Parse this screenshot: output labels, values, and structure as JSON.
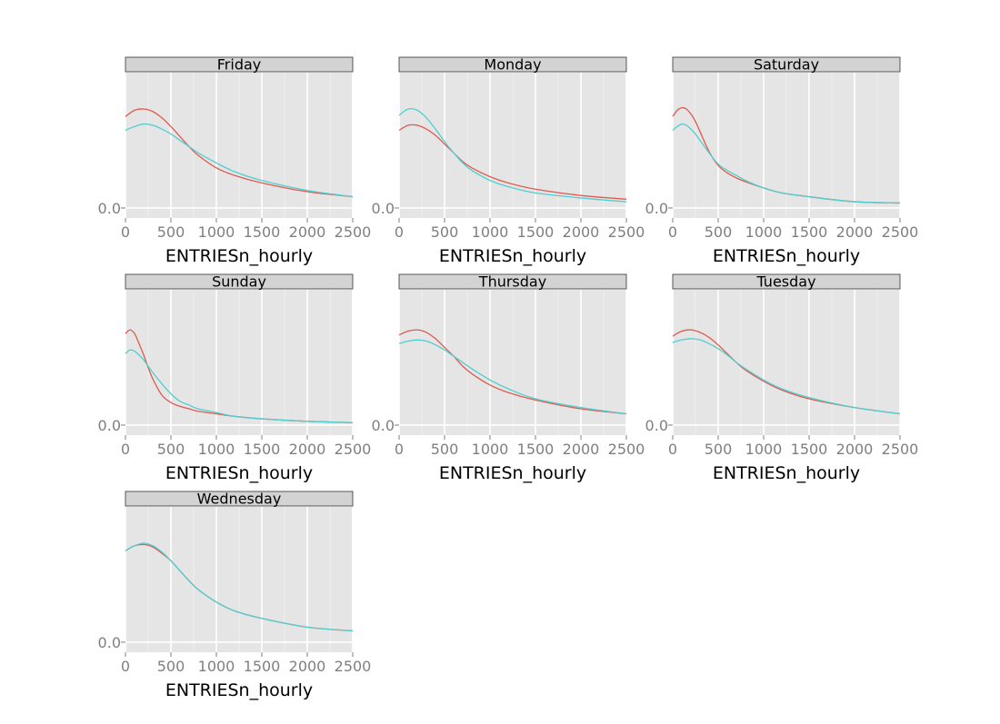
{
  "chart_data": {
    "type": "line",
    "subtype": "faceted-density",
    "xlabel": "ENTRIESn_hourly",
    "x_ticks": [
      0,
      500,
      1000,
      1500,
      2000,
      2500
    ],
    "x_tick_labels": [
      "0",
      "500",
      "1000",
      "1500",
      "2000",
      "2500"
    ],
    "y_tick_label": "0.0",
    "xlim": [
      0,
      2500
    ],
    "ylim": [
      -0.08,
      1.08
    ],
    "colors": {
      "series_a": "#e05a4f",
      "series_b": "#4fcfd0"
    },
    "grid": true,
    "facets": [
      {
        "name": "Friday",
        "series": [
          {
            "color": "series_a",
            "x": [
              0,
              100,
              200,
              300,
              400,
              500,
              600,
              700,
              800,
              1000,
              1200,
              1500,
              2000,
              2500
            ],
            "y": [
              0.73,
              0.78,
              0.79,
              0.77,
              0.72,
              0.65,
              0.57,
              0.49,
              0.42,
              0.32,
              0.26,
              0.2,
              0.13,
              0.09
            ]
          },
          {
            "color": "series_b",
            "x": [
              0,
              100,
              200,
              300,
              400,
              500,
              600,
              700,
              800,
              1000,
              1200,
              1500,
              2000,
              2500
            ],
            "y": [
              0.62,
              0.65,
              0.67,
              0.66,
              0.63,
              0.59,
              0.54,
              0.49,
              0.44,
              0.36,
              0.29,
              0.22,
              0.14,
              0.09
            ]
          }
        ]
      },
      {
        "name": "Monday",
        "series": [
          {
            "color": "series_a",
            "x": [
              0,
              100,
              200,
              300,
              400,
              500,
              600,
              700,
              800,
              1000,
              1200,
              1500,
              2000,
              2500
            ],
            "y": [
              0.62,
              0.66,
              0.66,
              0.63,
              0.58,
              0.51,
              0.44,
              0.37,
              0.32,
              0.25,
              0.2,
              0.15,
              0.1,
              0.07
            ]
          },
          {
            "color": "series_b",
            "x": [
              0,
              100,
              200,
              300,
              400,
              500,
              600,
              700,
              800,
              1000,
              1200,
              1500,
              2000,
              2500
            ],
            "y": [
              0.74,
              0.79,
              0.78,
              0.72,
              0.63,
              0.53,
              0.44,
              0.36,
              0.3,
              0.22,
              0.17,
              0.12,
              0.08,
              0.05
            ]
          }
        ]
      },
      {
        "name": "Saturday",
        "series": [
          {
            "color": "series_a",
            "x": [
              0,
              50,
              100,
              150,
              200,
              250,
              300,
              400,
              500,
              600,
              700,
              800,
              1000,
              1200,
              1500,
              2000,
              2500
            ],
            "y": [
              0.73,
              0.78,
              0.8,
              0.79,
              0.75,
              0.69,
              0.61,
              0.45,
              0.34,
              0.28,
              0.24,
              0.21,
              0.16,
              0.12,
              0.09,
              0.05,
              0.04
            ]
          },
          {
            "color": "series_b",
            "x": [
              0,
              50,
              100,
              150,
              200,
              250,
              300,
              400,
              500,
              600,
              700,
              800,
              1000,
              1200,
              1500,
              2000,
              2500
            ],
            "y": [
              0.62,
              0.65,
              0.67,
              0.66,
              0.63,
              0.59,
              0.54,
              0.44,
              0.35,
              0.3,
              0.26,
              0.22,
              0.16,
              0.12,
              0.09,
              0.05,
              0.04
            ]
          }
        ]
      },
      {
        "name": "Sunday",
        "series": [
          {
            "color": "series_a",
            "x": [
              0,
              50,
              100,
              150,
              200,
              250,
              300,
              400,
              500,
              600,
              700,
              800,
              1000,
              1200,
              1500,
              2000,
              2500
            ],
            "y": [
              0.73,
              0.76,
              0.73,
              0.65,
              0.56,
              0.46,
              0.37,
              0.24,
              0.18,
              0.15,
              0.13,
              0.11,
              0.09,
              0.07,
              0.05,
              0.03,
              0.02
            ]
          },
          {
            "color": "series_b",
            "x": [
              0,
              50,
              100,
              150,
              200,
              250,
              300,
              400,
              500,
              600,
              700,
              800,
              1000,
              1200,
              1500,
              2000,
              2500
            ],
            "y": [
              0.57,
              0.6,
              0.59,
              0.56,
              0.52,
              0.47,
              0.42,
              0.33,
              0.25,
              0.19,
              0.16,
              0.13,
              0.1,
              0.07,
              0.05,
              0.03,
              0.02
            ]
          }
        ]
      },
      {
        "name": "Thursday",
        "series": [
          {
            "color": "series_a",
            "x": [
              0,
              100,
              200,
              300,
              400,
              500,
              600,
              700,
              800,
              1000,
              1200,
              1500,
              2000,
              2500
            ],
            "y": [
              0.72,
              0.75,
              0.76,
              0.74,
              0.69,
              0.62,
              0.55,
              0.47,
              0.41,
              0.32,
              0.26,
              0.2,
              0.13,
              0.09
            ]
          },
          {
            "color": "series_b",
            "x": [
              0,
              100,
              200,
              300,
              400,
              500,
              600,
              700,
              800,
              1000,
              1200,
              1500,
              2000,
              2500
            ],
            "y": [
              0.65,
              0.67,
              0.68,
              0.67,
              0.64,
              0.6,
              0.55,
              0.5,
              0.45,
              0.36,
              0.29,
              0.21,
              0.14,
              0.09
            ]
          }
        ]
      },
      {
        "name": "Tuesday",
        "series": [
          {
            "color": "series_a",
            "x": [
              0,
              100,
              200,
              300,
              400,
              500,
              600,
              700,
              800,
              1000,
              1200,
              1500,
              2000,
              2500
            ],
            "y": [
              0.71,
              0.75,
              0.76,
              0.74,
              0.7,
              0.64,
              0.57,
              0.5,
              0.44,
              0.35,
              0.28,
              0.21,
              0.14,
              0.09
            ]
          },
          {
            "color": "series_b",
            "x": [
              0,
              100,
              200,
              300,
              400,
              500,
              600,
              700,
              800,
              1000,
              1200,
              1500,
              2000,
              2500
            ],
            "y": [
              0.66,
              0.68,
              0.69,
              0.68,
              0.65,
              0.61,
              0.56,
              0.5,
              0.45,
              0.36,
              0.29,
              0.22,
              0.14,
              0.09
            ]
          }
        ]
      },
      {
        "name": "Wednesday",
        "series": [
          {
            "color": "series_a",
            "x": [
              0,
              100,
              200,
              300,
              400,
              500,
              600,
              700,
              800,
              1000,
              1200,
              1500,
              2000,
              2500
            ],
            "y": [
              0.73,
              0.77,
              0.78,
              0.76,
              0.71,
              0.65,
              0.57,
              0.49,
              0.42,
              0.32,
              0.25,
              0.19,
              0.12,
              0.09
            ]
          },
          {
            "color": "series_b",
            "x": [
              0,
              100,
              200,
              300,
              400,
              500,
              600,
              700,
              800,
              1000,
              1200,
              1500,
              2000,
              2500
            ],
            "y": [
              0.73,
              0.77,
              0.79,
              0.77,
              0.72,
              0.65,
              0.57,
              0.49,
              0.42,
              0.32,
              0.25,
              0.19,
              0.12,
              0.09
            ]
          }
        ]
      }
    ]
  }
}
